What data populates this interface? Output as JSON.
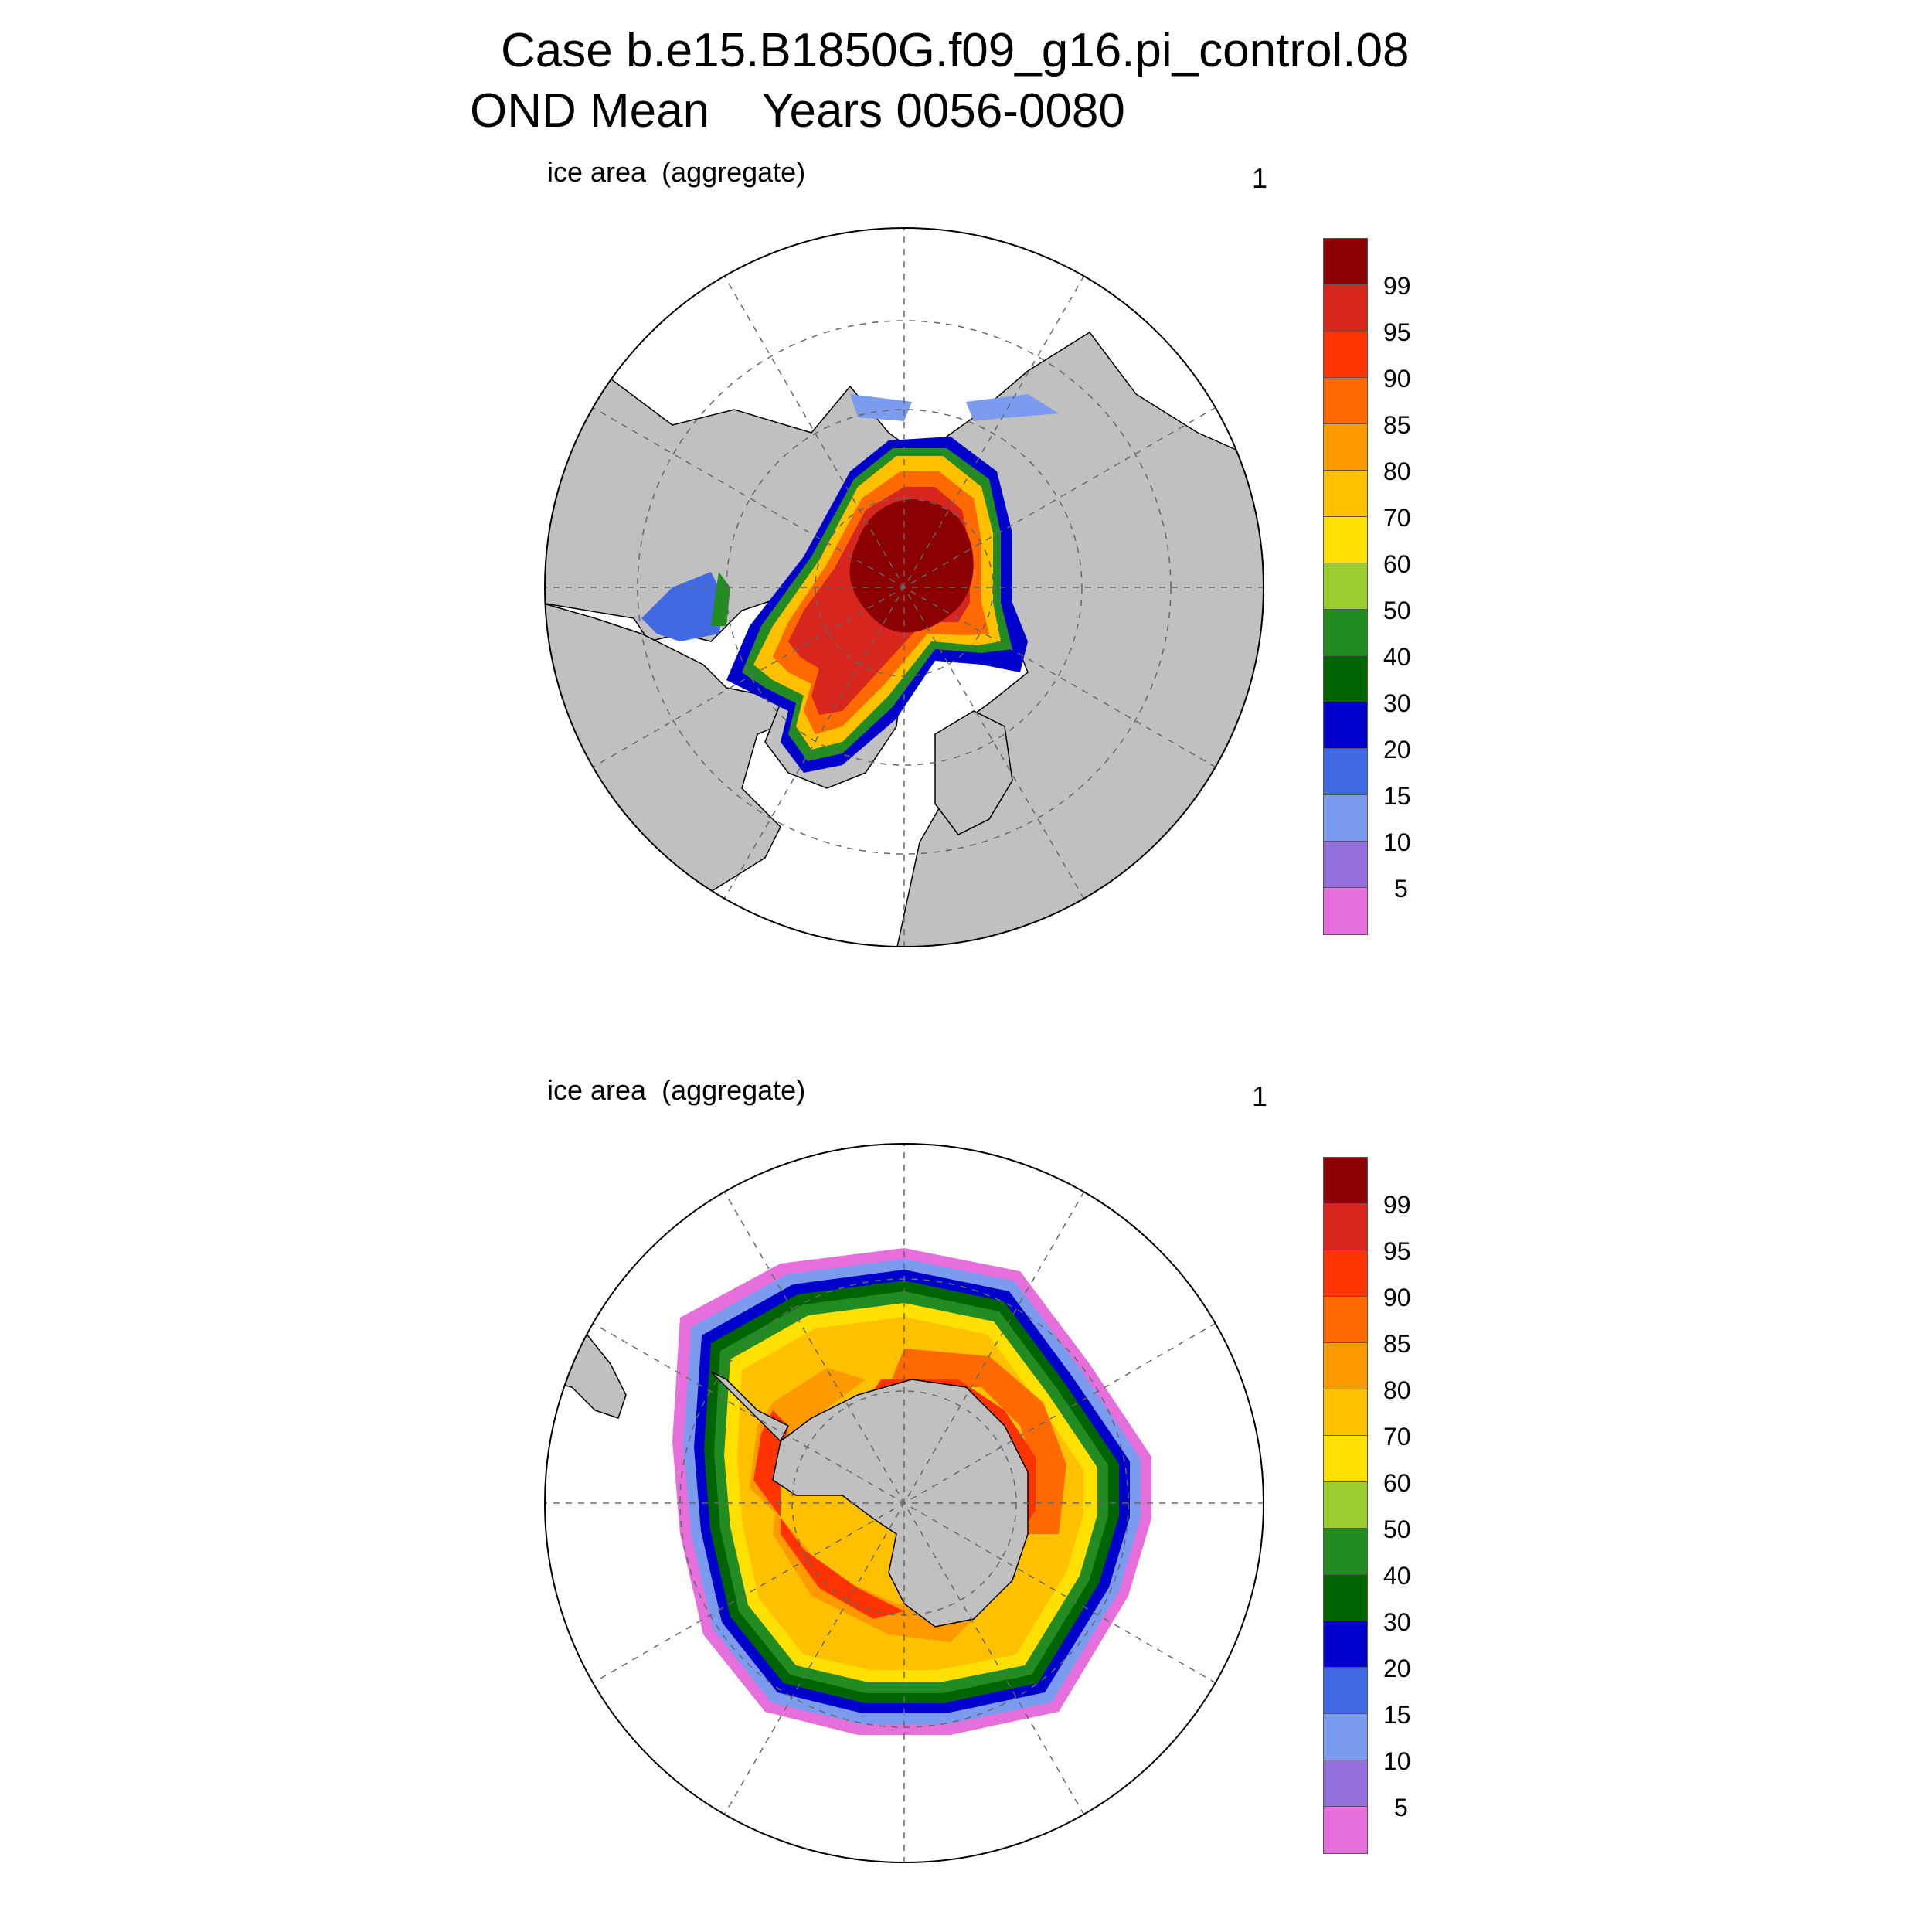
{
  "title": {
    "line1": "Case b.e15.B1850G.f09_g16.pi_control.08",
    "line2": "OND Mean    Years 0056-0080"
  },
  "panels": [
    {
      "id": "north",
      "subtitle": "ice area  (aggregate)",
      "number": "1"
    },
    {
      "id": "south",
      "subtitle": "ice area  (aggregate)",
      "number": "1"
    }
  ],
  "colorbar": {
    "levels": [
      "99",
      "95",
      "90",
      "85",
      "80",
      "70",
      "60",
      "50",
      "40",
      "30",
      "20",
      "15",
      "10",
      "5"
    ],
    "colors": [
      "#8b0000",
      "#d7261e",
      "#ff3300",
      "#ff6a00",
      "#ff9900",
      "#ffc000",
      "#ffe000",
      "#9acd32",
      "#228b22",
      "#006400",
      "#0000cd",
      "#4169e1",
      "#7b9bef",
      "#9370db",
      "#e76fdb"
    ]
  },
  "map_colors": {
    "land": "#c0c0c0",
    "ocean": "#ffffff"
  }
}
